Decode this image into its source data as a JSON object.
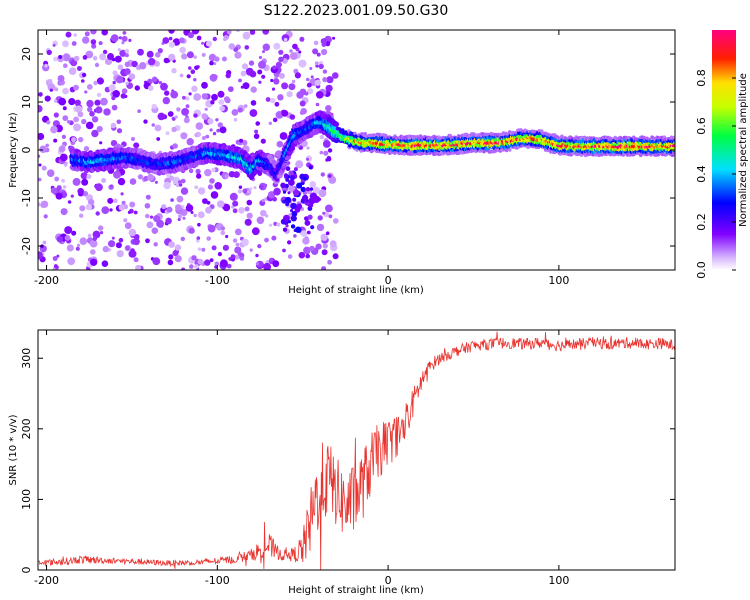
{
  "title": "S122.2023.001.09.50.G30",
  "chart_data": [
    {
      "type": "heatmap",
      "xlabel": "Height of straight line (km)",
      "ylabel": "Frequency (Hz)",
      "xlim": [
        -205,
        168
      ],
      "ylim": [
        -25,
        25
      ],
      "xticks": [
        -200,
        -100,
        0,
        100
      ],
      "yticks": [
        -20,
        -10,
        0,
        10,
        20
      ],
      "colorbar": {
        "label": "Normalized spectral amplitude",
        "ticks": [
          0.0,
          0.2,
          0.4,
          0.6,
          0.8
        ],
        "range": [
          0,
          1
        ],
        "colormap": "rainbow (violet-blue-cyan-green-yellow-red-magenta)"
      },
      "ridge": {
        "x": [
          -185,
          -175,
          -165,
          -155,
          -145,
          -135,
          -125,
          -115,
          -105,
          -95,
          -85,
          -80,
          -75,
          -70,
          -65,
          -60,
          -55,
          -50,
          -45,
          -40,
          -35,
          -30,
          -25,
          -20,
          -15,
          -10,
          0,
          10,
          20,
          30,
          40,
          50,
          60,
          70,
          75,
          80,
          90,
          95,
          100,
          110,
          120,
          130,
          140,
          150,
          160,
          168
        ],
        "y": [
          -2,
          -2.5,
          -2,
          -1.5,
          -2,
          -3,
          -2.5,
          -1.5,
          -0.5,
          -1,
          -2,
          -4,
          -2,
          -3,
          -5,
          -1,
          3,
          4,
          5,
          6,
          5,
          3.5,
          2.5,
          2,
          1.5,
          1.5,
          1.2,
          1,
          1,
          1,
          1.2,
          1.5,
          1.5,
          1.8,
          2.2,
          2.5,
          2.2,
          1.5,
          1,
          0.8,
          0.8,
          0.8,
          0.8,
          0.8,
          0.8,
          0.8
        ],
        "amplitude": [
          0.35,
          0.4,
          0.4,
          0.35,
          0.3,
          0.3,
          0.35,
          0.3,
          0.4,
          0.4,
          0.45,
          0.45,
          0.4,
          0.3,
          0.25,
          0.35,
          0.4,
          0.35,
          0.35,
          0.4,
          0.5,
          0.6,
          0.7,
          0.8,
          0.85,
          0.9,
          0.9,
          0.95,
          0.95,
          0.95,
          0.95,
          0.95,
          0.95,
          0.95,
          0.9,
          0.9,
          0.85,
          0.9,
          0.95,
          0.95,
          0.95,
          0.95,
          0.95,
          0.95,
          0.95,
          0.95
        ]
      }
    },
    {
      "type": "line",
      "xlabel": "Height of straight line (km)",
      "ylabel": "SNR (10 * v/v)",
      "xlim": [
        -205,
        168
      ],
      "ylim": [
        0,
        340
      ],
      "xticks": [
        -200,
        -100,
        0,
        100
      ],
      "yticks": [
        0,
        100,
        200,
        300
      ],
      "series": [
        {
          "color": "#e8332f",
          "x": [
            -205,
            -190,
            -180,
            -170,
            -160,
            -150,
            -140,
            -130,
            -120,
            -110,
            -100,
            -90,
            -80,
            -75,
            -70,
            -65,
            -60,
            -55,
            -50,
            -45,
            -40,
            -35,
            -30,
            -25,
            -20,
            -15,
            -10,
            -5,
            0,
            5,
            10,
            15,
            20,
            25,
            30,
            40,
            50,
            60,
            70,
            80,
            90,
            100,
            110,
            120,
            130,
            140,
            150,
            160,
            168
          ],
          "y": [
            10,
            12,
            15,
            14,
            13,
            12,
            11,
            10,
            10,
            11,
            13,
            15,
            22,
            28,
            35,
            25,
            20,
            22,
            30,
            70,
            120,
            130,
            110,
            90,
            100,
            120,
            150,
            170,
            180,
            190,
            200,
            240,
            270,
            290,
            300,
            310,
            318,
            320,
            322,
            320,
            322,
            318,
            320,
            322,
            320,
            322,
            320,
            321,
            318
          ],
          "noise": [
            4,
            5,
            6,
            5,
            4,
            4,
            4,
            4,
            4,
            4,
            5,
            6,
            8,
            15,
            20,
            10,
            8,
            10,
            25,
            50,
            60,
            55,
            50,
            50,
            50,
            50,
            45,
            40,
            35,
            30,
            30,
            20,
            15,
            10,
            8,
            8,
            8,
            8,
            8,
            8,
            8,
            8,
            8,
            8,
            8,
            8,
            8,
            8,
            8
          ]
        }
      ]
    }
  ]
}
